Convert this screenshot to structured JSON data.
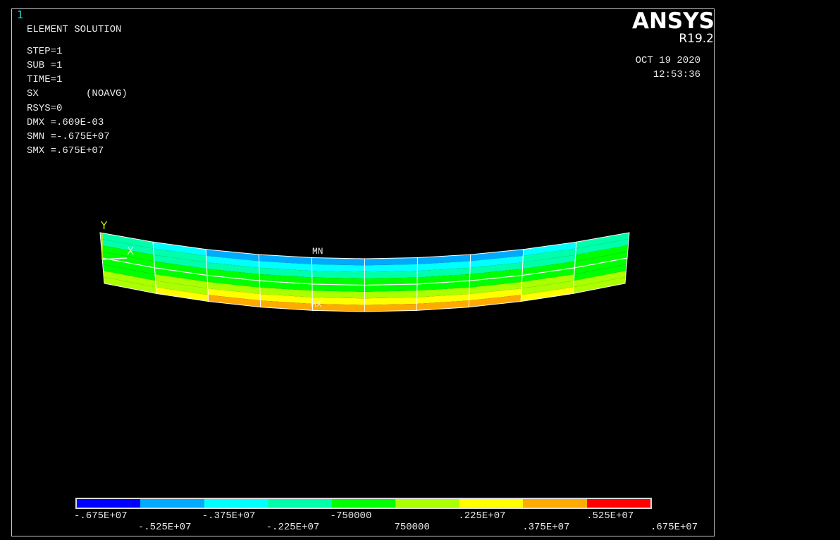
{
  "window_number": "1",
  "header": {
    "lines": [
      "ELEMENT SOLUTION",
      "STEP=1",
      "SUB =1",
      "TIME=1",
      "SX        (NOAVG)",
      "RSYS=0",
      "DMX =.609E-03",
      "SMN =-.675E+07",
      "SMX =.675E+07"
    ]
  },
  "brand": {
    "name": "ANSYS",
    "version": "R19.2",
    "date": "OCT 19 2020",
    "time": "12:53:36"
  },
  "triad": {
    "y_label": "Y",
    "x_label": "X"
  },
  "markers": {
    "min_label": "MN",
    "max_label": "MX"
  },
  "contour": {
    "result": "SX",
    "min": -6750000,
    "max": 6750000,
    "band_colors": [
      "#0000ff",
      "#00aaff",
      "#00ffff",
      "#00ffaa",
      "#00ff00",
      "#aaff00",
      "#ffff00",
      "#ffaa00",
      "#ff0000"
    ],
    "element_columns": 10,
    "element_rows": 2,
    "bands_per_row": 4
  },
  "legend": {
    "labels_top": [
      "-.675E+07",
      "-.375E+07",
      "-750000",
      ".225E+07",
      ".525E+07"
    ],
    "labels_bottom": [
      "-.525E+07",
      "-.225E+07",
      "750000",
      ".375E+07",
      ".675E+07"
    ]
  }
}
